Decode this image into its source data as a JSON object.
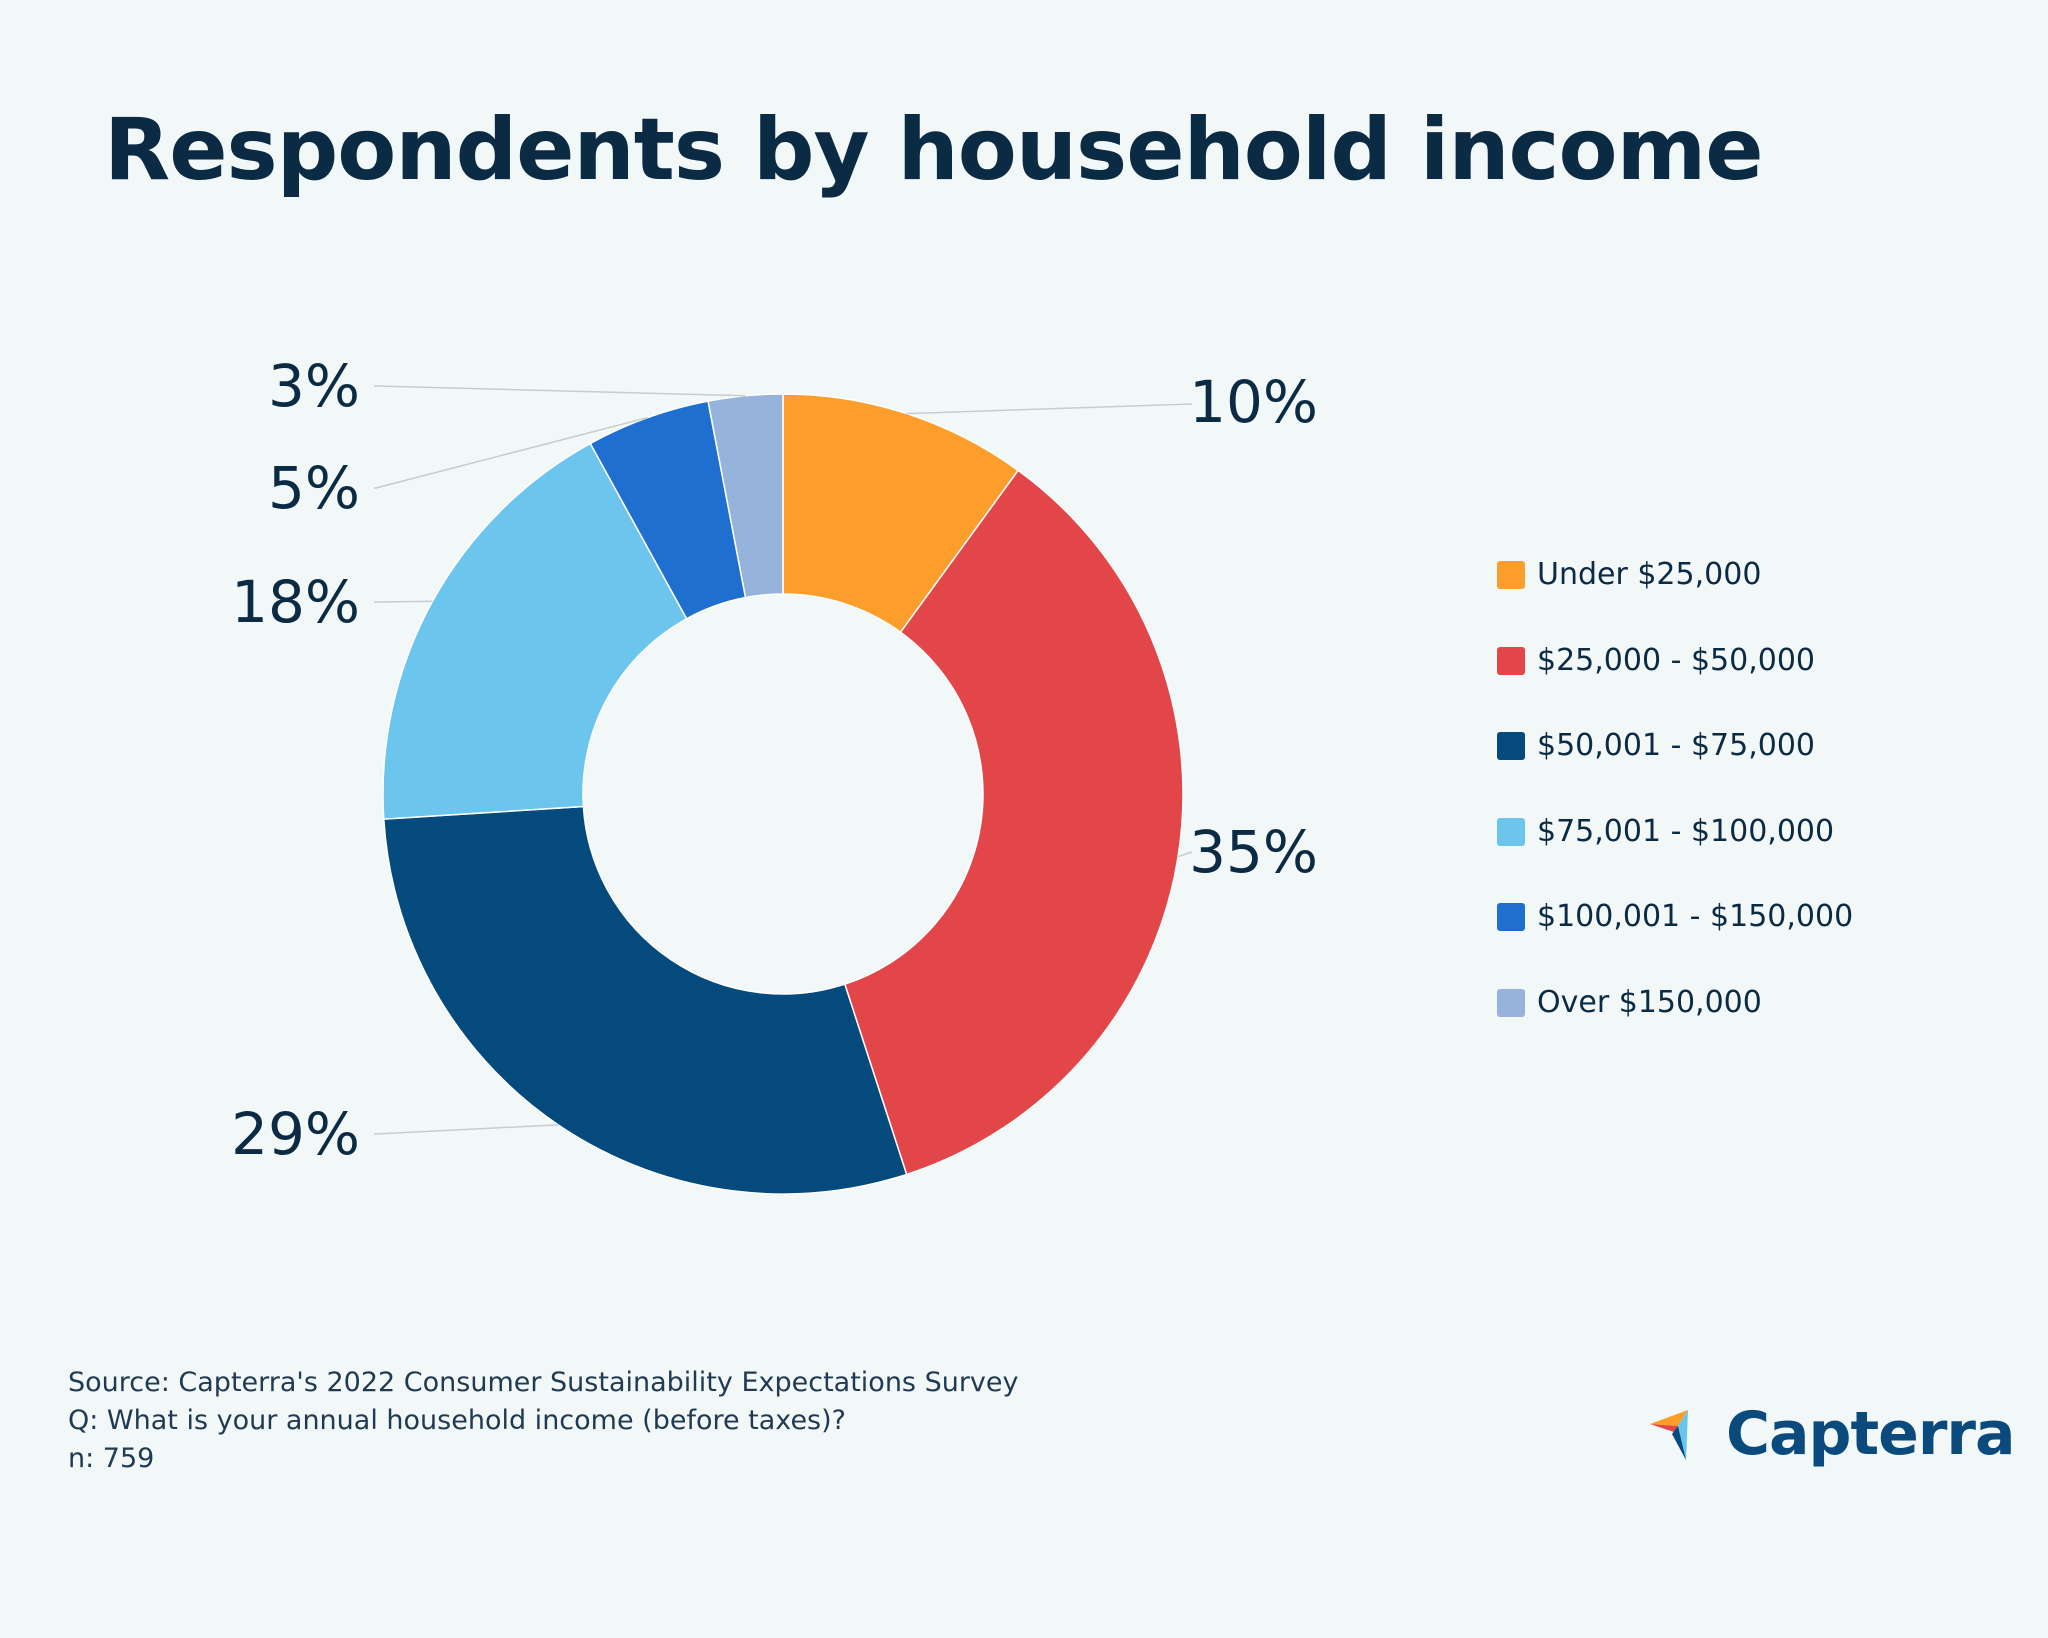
{
  "title": "Respondents by household income",
  "chart_data": {
    "type": "pie",
    "title": "Respondents by household income",
    "categories": [
      "Under $25,000",
      "$25,000 - $50,000",
      "$50,001 - $75,000",
      "$75,001 - $100,000",
      "$100,001 - $150,000",
      "Over $150,000"
    ],
    "values": [
      10,
      35,
      29,
      18,
      5,
      3
    ],
    "value_labels": [
      "10%",
      "35%",
      "29%",
      "18%",
      "5%",
      "3%"
    ],
    "colors": [
      "#fd9d2c",
      "#e34648",
      "#044a7c",
      "#6cc5ed",
      "#1f6fd0",
      "#96b3db"
    ],
    "donut": true,
    "legend_position": "right"
  },
  "legend": {
    "items": [
      {
        "label": "Under $25,000",
        "color": "#fd9d2c"
      },
      {
        "label": "$25,000 - $50,000",
        "color": "#e34648"
      },
      {
        "label": "$50,001 - $75,000",
        "color": "#044a7c"
      },
      {
        "label": "$75,001 - $100,000",
        "color": "#6cc5ed"
      },
      {
        "label": "$100,001 - $150,000",
        "color": "#1f6fd0"
      },
      {
        "label": "Over $150,000",
        "color": "#96b3db"
      }
    ]
  },
  "footer": {
    "source": "Source: Capterra's 2022 Consumer Sustainability Expectations Survey",
    "question": "Q: What is your annual household income (before taxes)?",
    "n": "n: 759"
  },
  "logo": {
    "text": "Capterra",
    "icon": "capterra-arrow-icon"
  }
}
